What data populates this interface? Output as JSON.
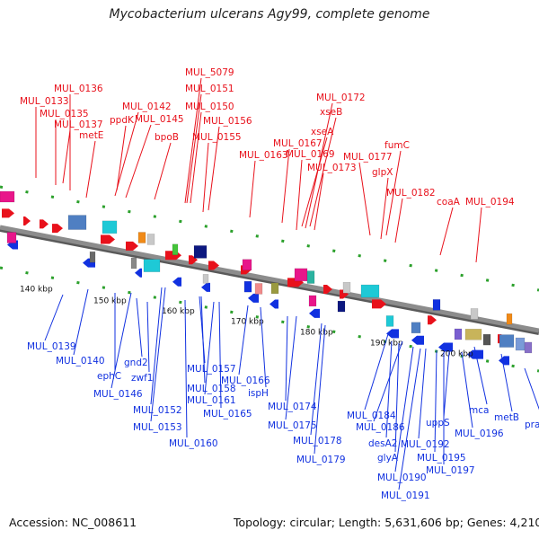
{
  "title": "Mycobacterium ulcerans Agy99, complete genome",
  "footer": {
    "accession": "Accession: NC_008611",
    "summary": "Topology: circular; Length: 5,631,606 bp; Genes: 4,210"
  },
  "colors": {
    "forward": "#e8111b",
    "reverse": "#1131e0",
    "backbone": "#8c8c8c",
    "dash": "#2ba02b"
  },
  "ticks": [
    "140 kbp",
    "150 kbp",
    "160 kbp",
    "170 kbp",
    "180 kbp",
    "190 kbp",
    "200 kbp"
  ],
  "top_labels": [
    "MUL_5079",
    "MUL_0151",
    "MUL_0136",
    "MUL_0150",
    "MUL_0133",
    "MUL_0135",
    "MUL_0142",
    "MUL_0172",
    "MUL_0137",
    "MUL_0145",
    "ppdK",
    "MUL_0156",
    "xseB",
    "metE",
    "bpoB",
    "MUL_0155",
    "xseA",
    "MUL_0167",
    "MUL_0169",
    "MUL_0163",
    "MUL_0177",
    "fumC",
    "MUL_0173",
    "glpX",
    "MUL_0182",
    "coaA",
    "MUL_0194"
  ],
  "bottom_labels": [
    "MUL_0139",
    "MUL_0140",
    "gnd2",
    "ephC",
    "zwf1",
    "MUL_0157",
    "MUL_0166",
    "MUL_0146",
    "MUL_0158",
    "ispH",
    "MUL_0161",
    "MUL_0152",
    "MUL_0165",
    "MUL_0174",
    "MUL_0153",
    "MUL_0160",
    "MUL_0175",
    "MUL_0178",
    "MUL_0179",
    "MUL_0184",
    "MUL_0186",
    "uppS",
    "mca",
    "MUL_0196",
    "metB",
    "pra",
    "desA2",
    "MUL_0192",
    "glyA",
    "MUL_0195",
    "MUL_0197",
    "MUL_0190",
    "MUL_0191"
  ]
}
